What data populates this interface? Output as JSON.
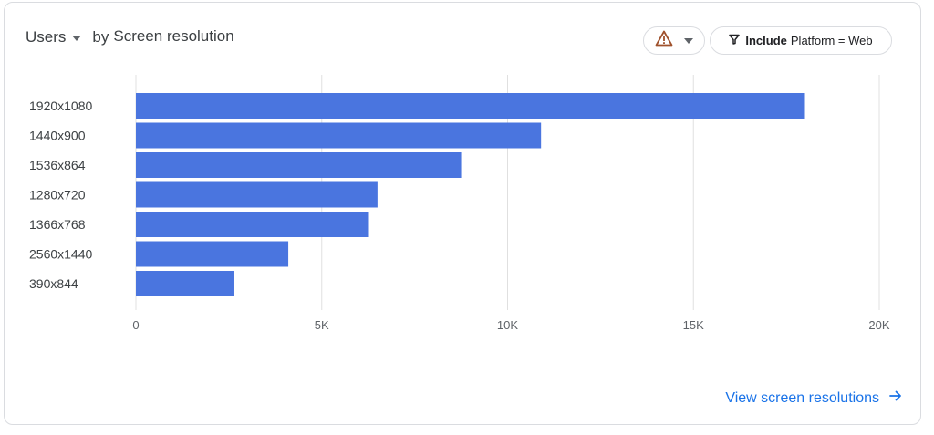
{
  "header": {
    "metric_label": "Users",
    "by_label": "by",
    "dimension_label": "Screen resolution"
  },
  "filter": {
    "include_label": "Include",
    "condition": "Platform = Web"
  },
  "footer": {
    "link_label": "View screen resolutions"
  },
  "colors": {
    "bar": "#4a75df",
    "grid": "#e0e0e0",
    "link": "#1a73e8",
    "warning": "#a0522d"
  },
  "chart_data": {
    "type": "bar",
    "orientation": "horizontal",
    "categories": [
      "1920x1080",
      "1440x900",
      "1536x864",
      "1280x720",
      "1366x768",
      "2560x1440",
      "390x844"
    ],
    "values": [
      18000,
      10900,
      8750,
      6500,
      6270,
      4100,
      2650
    ],
    "x_ticks": [
      "0",
      "5K",
      "10K",
      "15K",
      "20K"
    ],
    "xlim": [
      0,
      20000
    ],
    "grid": true,
    "legend": "none"
  }
}
